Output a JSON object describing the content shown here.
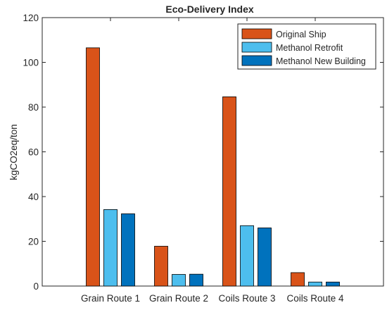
{
  "chart_data": {
    "type": "bar",
    "title": "Eco-Delivery Index",
    "ylabel": "kgCO2eq/ton",
    "xlabel": "",
    "categories": [
      "Grain Route 1",
      "Grain Route 2",
      "Coils Route 3",
      "Coils Route 4"
    ],
    "ylim": [
      0,
      120
    ],
    "yticks": [
      0,
      20,
      40,
      60,
      80,
      100,
      120
    ],
    "grid": false,
    "legend_position": "top-right",
    "series": [
      {
        "name": "Original Ship",
        "color": "#d95319",
        "values": [
          106.5,
          17.8,
          84.6,
          6.0
        ]
      },
      {
        "name": "Methanol Retrofit",
        "color": "#4dbeee",
        "values": [
          34.2,
          5.2,
          27.0,
          1.8
        ]
      },
      {
        "name": "Methanol New Building",
        "color": "#0072bd",
        "values": [
          32.3,
          5.3,
          26.0,
          1.8
        ]
      }
    ]
  }
}
